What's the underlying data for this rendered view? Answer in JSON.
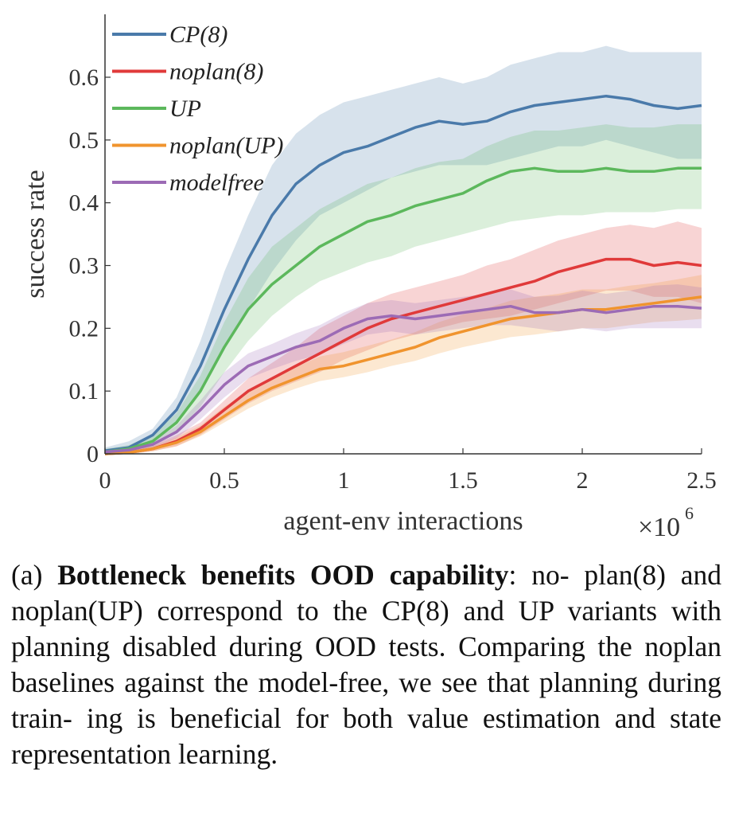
{
  "chart_data": {
    "type": "line",
    "title": "",
    "xlabel": "agent-env interactions",
    "x_multiplier_label": "×10",
    "x_multiplier_exp": "6",
    "ylabel": "success rate",
    "xlim": [
      0,
      2.5
    ],
    "ylim": [
      0,
      0.6
    ],
    "x_ticks": [
      "0",
      "0.5",
      "1",
      "1.5",
      "2",
      "2.5"
    ],
    "x_tick_values": [
      0,
      0.5,
      1,
      1.5,
      2,
      2.5
    ],
    "y_ticks": [
      "0",
      "0.1",
      "0.2",
      "0.3",
      "0.4",
      "0.5",
      "0.6"
    ],
    "y_tick_values": [
      0,
      0.1,
      0.2,
      0.3,
      0.4,
      0.5,
      0.6
    ],
    "legend_position": "top-left",
    "grid": false,
    "series": [
      {
        "name": "CP(8)",
        "color": "#4a7aaa",
        "x": [
          0,
          0.1,
          0.2,
          0.3,
          0.4,
          0.5,
          0.6,
          0.7,
          0.8,
          0.9,
          1.0,
          1.1,
          1.2,
          1.3,
          1.4,
          1.5,
          1.6,
          1.7,
          1.8,
          1.9,
          2.0,
          2.1,
          2.2,
          2.3,
          2.4,
          2.5
        ],
        "y": [
          0.005,
          0.01,
          0.03,
          0.07,
          0.14,
          0.23,
          0.31,
          0.38,
          0.43,
          0.46,
          0.48,
          0.49,
          0.505,
          0.52,
          0.53,
          0.525,
          0.53,
          0.545,
          0.555,
          0.56,
          0.565,
          0.57,
          0.565,
          0.555,
          0.55,
          0.555
        ],
        "lower": [
          0.0,
          0.005,
          0.02,
          0.05,
          0.1,
          0.17,
          0.23,
          0.29,
          0.34,
          0.38,
          0.4,
          0.42,
          0.44,
          0.45,
          0.46,
          0.46,
          0.46,
          0.47,
          0.48,
          0.49,
          0.49,
          0.5,
          0.49,
          0.48,
          0.47,
          0.47
        ],
        "upper": [
          0.01,
          0.02,
          0.04,
          0.09,
          0.18,
          0.29,
          0.38,
          0.46,
          0.51,
          0.54,
          0.56,
          0.57,
          0.58,
          0.59,
          0.6,
          0.59,
          0.6,
          0.62,
          0.63,
          0.64,
          0.64,
          0.65,
          0.64,
          0.64,
          0.64,
          0.64
        ]
      },
      {
        "name": "noplan(8)",
        "color": "#e03a3a",
        "x": [
          0,
          0.1,
          0.2,
          0.3,
          0.4,
          0.5,
          0.6,
          0.7,
          0.8,
          0.9,
          1.0,
          1.1,
          1.2,
          1.3,
          1.4,
          1.5,
          1.6,
          1.7,
          1.8,
          1.9,
          2.0,
          2.1,
          2.2,
          2.3,
          2.4,
          2.5
        ],
        "y": [
          0.0,
          0.002,
          0.008,
          0.02,
          0.04,
          0.07,
          0.1,
          0.12,
          0.14,
          0.16,
          0.18,
          0.2,
          0.215,
          0.225,
          0.235,
          0.245,
          0.255,
          0.265,
          0.275,
          0.29,
          0.3,
          0.31,
          0.31,
          0.3,
          0.305,
          0.3
        ],
        "lower": [
          0.0,
          0.0,
          0.004,
          0.012,
          0.03,
          0.055,
          0.08,
          0.1,
          0.115,
          0.13,
          0.15,
          0.165,
          0.18,
          0.19,
          0.2,
          0.21,
          0.215,
          0.22,
          0.23,
          0.24,
          0.25,
          0.26,
          0.26,
          0.25,
          0.25,
          0.24
        ],
        "upper": [
          0.004,
          0.008,
          0.014,
          0.03,
          0.05,
          0.085,
          0.12,
          0.145,
          0.17,
          0.2,
          0.22,
          0.24,
          0.255,
          0.265,
          0.275,
          0.285,
          0.3,
          0.31,
          0.325,
          0.34,
          0.35,
          0.36,
          0.365,
          0.36,
          0.37,
          0.36
        ]
      },
      {
        "name": "UP",
        "color": "#5cb85c",
        "x": [
          0,
          0.1,
          0.2,
          0.3,
          0.4,
          0.5,
          0.6,
          0.7,
          0.8,
          0.9,
          1.0,
          1.1,
          1.2,
          1.3,
          1.4,
          1.5,
          1.6,
          1.7,
          1.8,
          1.9,
          2.0,
          2.1,
          2.2,
          2.3,
          2.4,
          2.5
        ],
        "y": [
          0.003,
          0.008,
          0.02,
          0.05,
          0.1,
          0.17,
          0.23,
          0.27,
          0.3,
          0.33,
          0.35,
          0.37,
          0.38,
          0.395,
          0.405,
          0.415,
          0.435,
          0.45,
          0.455,
          0.45,
          0.45,
          0.455,
          0.45,
          0.45,
          0.455,
          0.455
        ],
        "lower": [
          0.0,
          0.004,
          0.012,
          0.035,
          0.075,
          0.13,
          0.18,
          0.22,
          0.25,
          0.275,
          0.29,
          0.305,
          0.315,
          0.33,
          0.34,
          0.35,
          0.36,
          0.37,
          0.375,
          0.38,
          0.38,
          0.385,
          0.385,
          0.385,
          0.39,
          0.39
        ],
        "upper": [
          0.008,
          0.014,
          0.03,
          0.065,
          0.125,
          0.21,
          0.28,
          0.33,
          0.36,
          0.39,
          0.41,
          0.43,
          0.44,
          0.455,
          0.465,
          0.47,
          0.49,
          0.505,
          0.515,
          0.515,
          0.52,
          0.525,
          0.52,
          0.52,
          0.525,
          0.525
        ]
      },
      {
        "name": "noplan(UP)",
        "color": "#f0942e",
        "x": [
          0,
          0.1,
          0.2,
          0.3,
          0.4,
          0.5,
          0.6,
          0.7,
          0.8,
          0.9,
          1.0,
          1.1,
          1.2,
          1.3,
          1.4,
          1.5,
          1.6,
          1.7,
          1.8,
          1.9,
          2.0,
          2.1,
          2.2,
          2.3,
          2.4,
          2.5
        ],
        "y": [
          0.0,
          0.002,
          0.008,
          0.018,
          0.035,
          0.06,
          0.085,
          0.105,
          0.12,
          0.135,
          0.14,
          0.15,
          0.16,
          0.17,
          0.185,
          0.195,
          0.205,
          0.215,
          0.22,
          0.225,
          0.23,
          0.23,
          0.235,
          0.24,
          0.245,
          0.25
        ],
        "lower": [
          0.0,
          0.0,
          0.004,
          0.012,
          0.028,
          0.05,
          0.072,
          0.09,
          0.104,
          0.116,
          0.122,
          0.13,
          0.14,
          0.148,
          0.16,
          0.17,
          0.178,
          0.186,
          0.19,
          0.195,
          0.2,
          0.2,
          0.205,
          0.21,
          0.212,
          0.215
        ],
        "upper": [
          0.004,
          0.006,
          0.012,
          0.026,
          0.045,
          0.075,
          0.1,
          0.12,
          0.138,
          0.155,
          0.162,
          0.172,
          0.182,
          0.194,
          0.21,
          0.222,
          0.232,
          0.244,
          0.25,
          0.255,
          0.262,
          0.262,
          0.268,
          0.272,
          0.278,
          0.285
        ]
      },
      {
        "name": "modelfree",
        "color": "#9c6bb5",
        "x": [
          0,
          0.1,
          0.2,
          0.3,
          0.4,
          0.5,
          0.6,
          0.7,
          0.8,
          0.9,
          1.0,
          1.1,
          1.2,
          1.3,
          1.4,
          1.5,
          1.6,
          1.7,
          1.8,
          1.9,
          2.0,
          2.1,
          2.2,
          2.3,
          2.4,
          2.5
        ],
        "y": [
          0.003,
          0.006,
          0.015,
          0.035,
          0.07,
          0.11,
          0.14,
          0.155,
          0.17,
          0.18,
          0.2,
          0.215,
          0.22,
          0.215,
          0.22,
          0.225,
          0.23,
          0.235,
          0.225,
          0.225,
          0.23,
          0.225,
          0.23,
          0.235,
          0.235,
          0.232
        ],
        "lower": [
          0.0,
          0.002,
          0.01,
          0.025,
          0.055,
          0.09,
          0.12,
          0.135,
          0.148,
          0.158,
          0.175,
          0.19,
          0.195,
          0.19,
          0.195,
          0.2,
          0.205,
          0.205,
          0.2,
          0.195,
          0.2,
          0.195,
          0.2,
          0.2,
          0.2,
          0.2
        ],
        "upper": [
          0.006,
          0.01,
          0.02,
          0.045,
          0.085,
          0.13,
          0.16,
          0.175,
          0.192,
          0.205,
          0.225,
          0.24,
          0.245,
          0.24,
          0.245,
          0.25,
          0.255,
          0.262,
          0.25,
          0.252,
          0.26,
          0.255,
          0.26,
          0.268,
          0.27,
          0.265
        ]
      }
    ]
  },
  "caption": {
    "prefix": "(a) ",
    "bold": "Bottleneck benefits OOD capability",
    "lines": [
      ": no-",
      "plan(8) and noplan(UP) correspond to the CP(8)",
      "and UP variants with planning disabled during",
      "OOD tests. Comparing the noplan baselines against",
      "the model-free, we see that planning during train-",
      "ing is beneficial for both value estimation and state",
      "representation learning."
    ]
  }
}
